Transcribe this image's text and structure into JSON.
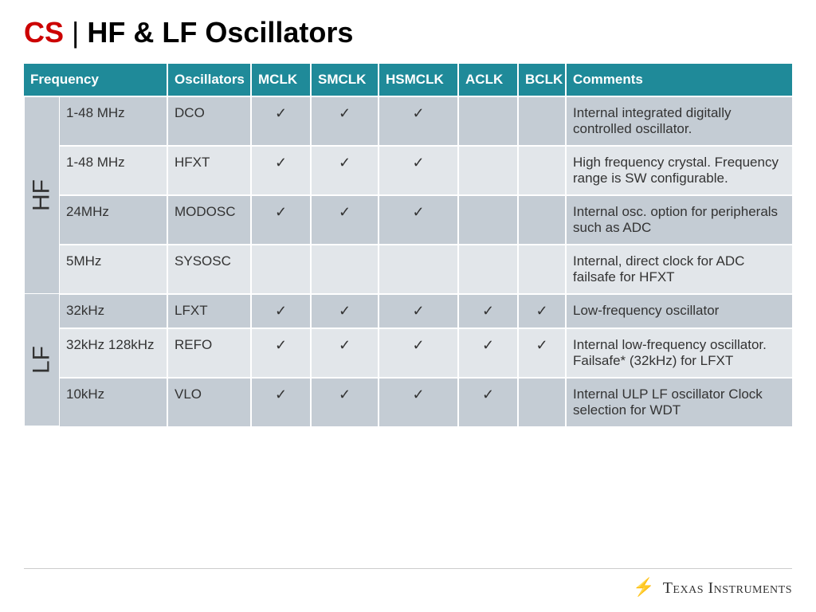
{
  "title": {
    "cs": "CS",
    "bar": " | ",
    "rest": "HF & LF Oscillators"
  },
  "columns": [
    "Frequency",
    "Oscillators",
    "MCLK",
    "SMCLK",
    "HSMCLK",
    "ACLK",
    "BCLK",
    "Comments"
  ],
  "colWidths": [
    "136px",
    "105px",
    "75px",
    "85px",
    "100px",
    "75px",
    "60px",
    "auto"
  ],
  "check": "✓",
  "groups": [
    {
      "label": "HF",
      "labelWidth": "44px",
      "rows": [
        {
          "cls": "hf-odd",
          "freq": "1-48 MHz",
          "osc": "DCO",
          "clk": [
            true,
            true,
            true,
            false,
            false
          ],
          "comment": "Internal integrated digitally controlled oscillator."
        },
        {
          "cls": "hf-even",
          "freq": "1-48 MHz",
          "osc": "HFXT",
          "clk": [
            true,
            true,
            true,
            false,
            false
          ],
          "comment": "High frequency crystal. Frequency range is SW configurable."
        },
        {
          "cls": "hf-odd",
          "freq": "24MHz",
          "osc": "MODOSC",
          "clk": [
            true,
            true,
            true,
            false,
            false
          ],
          "comment": "Internal osc. option for peripherals such as ADC"
        },
        {
          "cls": "hf-even",
          "freq": "5MHz",
          "osc": "SYSOSC",
          "clk": [
            false,
            false,
            false,
            false,
            false
          ],
          "comment": "Internal, direct clock for ADC failsafe for HFXT"
        }
      ]
    },
    {
      "label": "LF",
      "labelWidth": "44px",
      "rows": [
        {
          "cls": "lf-odd",
          "freq": "32kHz",
          "osc": "LFXT",
          "clk": [
            true,
            true,
            true,
            true,
            true
          ],
          "comment": "Low-frequency oscillator"
        },
        {
          "cls": "lf-even",
          "freq": "32kHz 128kHz",
          "osc": "REFO",
          "clk": [
            true,
            true,
            true,
            true,
            true
          ],
          "comment": "Internal low-frequency oscillator.\nFailsafe* (32kHz) for LFXT"
        },
        {
          "cls": "lf-odd",
          "freq": "10kHz",
          "osc": "VLO",
          "clk": [
            true,
            true,
            true,
            true,
            false
          ],
          "comment": "Internal ULP LF oscillator Clock selection for WDT"
        }
      ]
    }
  ],
  "footer": {
    "logo": "⚡",
    "brand": "Texas Instruments"
  },
  "colors": {
    "headerBg": "#1f8a99",
    "groupBg": "#c4ccd4",
    "rowOdd": "#c4ccd4",
    "rowEven": "#e2e6ea",
    "csRed": "#cc0000"
  }
}
